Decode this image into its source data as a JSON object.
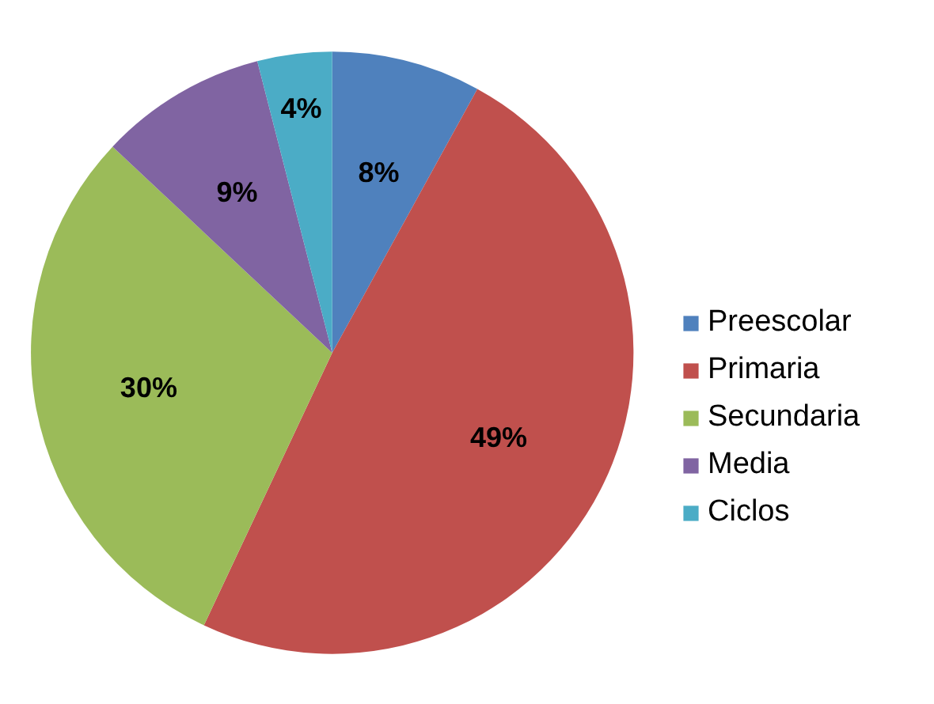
{
  "chart_data": {
    "type": "pie",
    "categories": [
      "Preescolar",
      "Primaria",
      "Secundaria",
      "Media",
      "Ciclos"
    ],
    "values": [
      8,
      49,
      30,
      9,
      4
    ],
    "colors": [
      "#4f81bd",
      "#c0504d",
      "#9bbb59",
      "#8064a2",
      "#4bacc6"
    ],
    "value_labels": [
      "8%",
      "49%",
      "30%",
      "9%",
      "4%"
    ],
    "legend": "right"
  }
}
